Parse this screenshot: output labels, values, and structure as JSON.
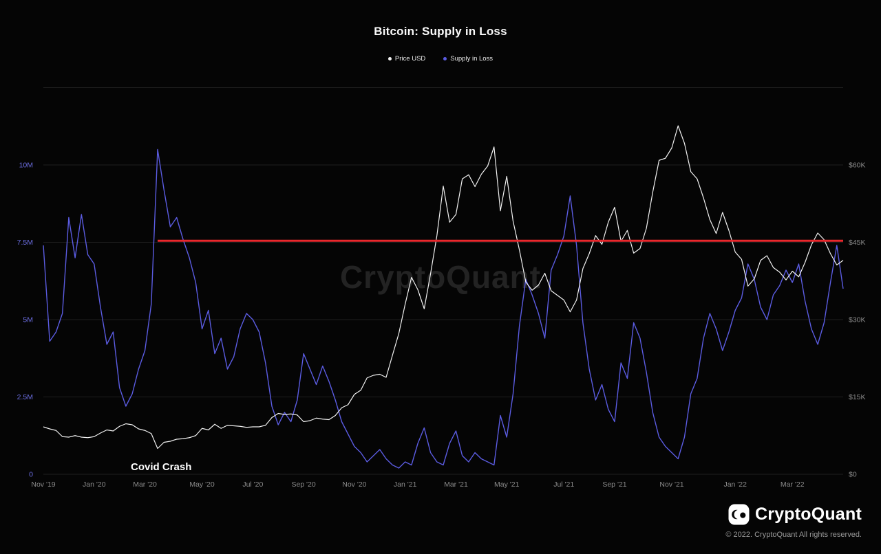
{
  "title": "Bitcoin: Supply in Loss",
  "watermark": "CryptoQuant",
  "legend": [
    {
      "label": "Price USD",
      "color": "#f2f2f2"
    },
    {
      "label": "Supply in Loss",
      "color": "#5b5ce2"
    }
  ],
  "colors": {
    "background": "#050505",
    "grid": "#1f1f1f",
    "left_axis_labels": "#6b6de0",
    "right_axis_labels": "#8c8c8c",
    "x_axis_labels": "#8c8c8c",
    "price_line": "#f2f2f2",
    "supply_line": "#5b5ce2",
    "red_line": "#e8282d",
    "watermark": "#3c3c3c"
  },
  "footer": {
    "brand": "CryptoQuant",
    "copyright": "© 2022. CryptoQuant All rights reserved."
  },
  "chart_data": {
    "type": "line",
    "title": "Bitcoin: Supply in Loss",
    "x_range": "Nov 2019 - Apr 2022, weekly samples",
    "x_ticks": [
      {
        "label": "Nov '19",
        "i": 0
      },
      {
        "label": "Jan '20",
        "i": 8
      },
      {
        "label": "Mar '20",
        "i": 16
      },
      {
        "label": "May '20",
        "i": 25
      },
      {
        "label": "Jul '20",
        "i": 33
      },
      {
        "label": "Sep '20",
        "i": 41
      },
      {
        "label": "Nov '20",
        "i": 49
      },
      {
        "label": "Jan '21",
        "i": 57
      },
      {
        "label": "Mar '21",
        "i": 65
      },
      {
        "label": "May '21",
        "i": 73
      },
      {
        "label": "Jul '21",
        "i": 82
      },
      {
        "label": "Sep '21",
        "i": 90
      },
      {
        "label": "Nov '21",
        "i": 99
      },
      {
        "label": "Jan '22",
        "i": 109
      },
      {
        "label": "Mar '22",
        "i": 118
      }
    ],
    "grid_values": [
      0,
      2.5,
      5,
      7.5,
      10,
      12.5
    ],
    "y_left": {
      "name": "Supply in Loss",
      "unit": "million BTC",
      "range": [
        0,
        12.5
      ],
      "ticks": [
        {
          "label": "0",
          "value": 0
        },
        {
          "label": "2.5M",
          "value": 2.5
        },
        {
          "label": "5M",
          "value": 5
        },
        {
          "label": "7.5M",
          "value": 7.5
        },
        {
          "label": "10M",
          "value": 10
        }
      ]
    },
    "y_right": {
      "name": "Price USD",
      "unit": "thousand USD",
      "range": [
        0,
        75
      ],
      "ticks": [
        {
          "label": "$0",
          "value": 0
        },
        {
          "label": "$15K",
          "value": 15
        },
        {
          "label": "$30K",
          "value": 30
        },
        {
          "label": "$45K",
          "value": 45
        },
        {
          "label": "$60K",
          "value": 60
        }
      ]
    },
    "series": [
      {
        "name": "Price USD",
        "axis": "right",
        "unit": "thousand USD",
        "color": "#f2f2f2",
        "values": [
          9.2,
          8.8,
          8.5,
          7.3,
          7.2,
          7.5,
          7.2,
          7.1,
          7.3,
          8.0,
          8.6,
          8.4,
          9.3,
          9.8,
          9.6,
          8.8,
          8.5,
          7.9,
          5.0,
          6.2,
          6.4,
          6.8,
          6.9,
          7.1,
          7.5,
          8.9,
          8.6,
          9.7,
          8.9,
          9.5,
          9.4,
          9.3,
          9.1,
          9.2,
          9.2,
          9.5,
          11.0,
          11.8,
          11.6,
          11.7,
          11.5,
          10.2,
          10.4,
          10.9,
          10.7,
          10.6,
          11.4,
          12.9,
          13.5,
          15.5,
          16.3,
          18.7,
          19.2,
          19.4,
          18.8,
          23.1,
          27.3,
          33.0,
          38.2,
          35.8,
          32.1,
          38.9,
          46.3,
          55.9,
          48.9,
          50.4,
          57.3,
          58.1,
          55.8,
          58.2,
          59.8,
          63.5,
          51.1,
          57.8,
          49.1,
          43.5,
          37.3,
          35.7,
          36.7,
          39.0,
          35.6,
          34.7,
          33.8,
          31.5,
          33.8,
          39.9,
          42.8,
          46.3,
          44.6,
          48.9,
          51.8,
          45.2,
          47.3,
          42.9,
          43.8,
          47.7,
          54.7,
          60.9,
          61.3,
          63.3,
          67.6,
          64.2,
          58.7,
          57.3,
          53.6,
          49.4,
          46.7,
          50.8,
          47.3,
          43.1,
          41.7,
          36.5,
          37.9,
          41.5,
          42.4,
          40.1,
          39.2,
          37.7,
          39.4,
          38.3,
          41.1,
          44.5,
          46.8,
          45.5,
          42.8,
          40.6,
          41.5
        ]
      },
      {
        "name": "Supply in Loss",
        "axis": "left",
        "unit": "million BTC",
        "color": "#5b5ce2",
        "values": [
          7.4,
          4.3,
          4.6,
          5.2,
          8.3,
          7.0,
          8.4,
          7.1,
          6.8,
          5.4,
          4.2,
          4.6,
          2.8,
          2.2,
          2.6,
          3.4,
          4.0,
          5.5,
          10.5,
          9.2,
          8.0,
          8.3,
          7.6,
          7.0,
          6.2,
          4.7,
          5.3,
          3.9,
          4.4,
          3.4,
          3.8,
          4.7,
          5.2,
          5.0,
          4.6,
          3.6,
          2.2,
          1.6,
          2.0,
          1.7,
          2.4,
          3.9,
          3.4,
          2.9,
          3.5,
          3.0,
          2.4,
          1.7,
          1.3,
          0.9,
          0.7,
          0.4,
          0.6,
          0.8,
          0.5,
          0.3,
          0.2,
          0.4,
          0.3,
          1.0,
          1.5,
          0.7,
          0.4,
          0.3,
          1.0,
          1.4,
          0.6,
          0.4,
          0.7,
          0.5,
          0.4,
          0.3,
          1.9,
          1.2,
          2.6,
          4.8,
          6.3,
          5.8,
          5.2,
          4.4,
          6.6,
          7.1,
          7.7,
          9.0,
          7.4,
          4.9,
          3.4,
          2.4,
          2.9,
          2.1,
          1.7,
          3.6,
          3.1,
          4.9,
          4.4,
          3.3,
          2.0,
          1.2,
          0.9,
          0.7,
          0.5,
          1.2,
          2.6,
          3.1,
          4.4,
          5.2,
          4.7,
          4.0,
          4.6,
          5.3,
          5.7,
          6.8,
          6.3,
          5.4,
          5.0,
          5.8,
          6.1,
          6.6,
          6.2,
          6.8,
          5.6,
          4.7,
          4.2,
          4.9,
          6.2,
          7.4,
          6.0
        ]
      }
    ],
    "annotations": {
      "covid_crash_label": "Covid Crash",
      "red_line": {
        "type": "hline",
        "value_left_axis": 7.55,
        "equivalent_price": "$45.3K",
        "start_index": 18,
        "color": "#e8282d"
      }
    }
  }
}
